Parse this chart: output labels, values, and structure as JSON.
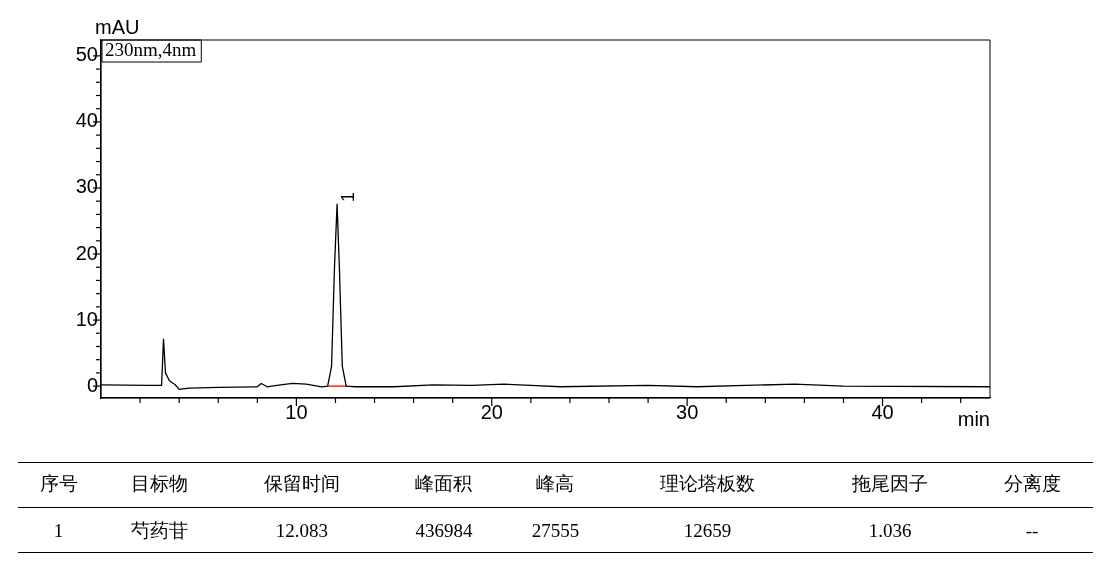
{
  "chart_data": [
    {
      "type": "line",
      "xlabel": "min",
      "ylabel": "mAU",
      "xlim": [
        0,
        45.5
      ],
      "ylim": [
        -1.8,
        52.4
      ],
      "xticks": [
        {
          "value": 2,
          "label": null
        },
        {
          "value": 4,
          "label": null
        },
        {
          "value": 6,
          "label": null
        },
        {
          "value": 8,
          "label": null
        },
        10,
        {
          "value": 12,
          "label": null
        },
        {
          "value": 14,
          "label": null
        },
        {
          "value": 16,
          "label": null
        },
        {
          "value": 18,
          "label": null
        },
        20,
        {
          "value": 22,
          "label": null
        },
        {
          "value": 24,
          "label": null
        },
        {
          "value": 26,
          "label": null
        },
        {
          "value": 28,
          "label": null
        },
        30,
        {
          "value": 32,
          "label": null
        },
        {
          "value": 34,
          "label": null
        },
        {
          "value": 36,
          "label": null
        },
        {
          "value": 38,
          "label": null
        },
        40,
        {
          "value": 42,
          "label": null
        },
        {
          "value": 44,
          "label": null
        }
      ],
      "yticks": [
        0,
        {
          "value": 2,
          "label": null
        },
        {
          "value": 4,
          "label": null
        },
        {
          "value": 6,
          "label": null
        },
        {
          "value": 8,
          "label": null
        },
        10,
        {
          "value": 12,
          "label": null
        },
        {
          "value": 14,
          "label": null
        },
        {
          "value": 16,
          "label": null
        },
        {
          "value": 18,
          "label": null
        },
        20,
        {
          "value": 22,
          "label": null
        },
        {
          "value": 24,
          "label": null
        },
        {
          "value": 26,
          "label": null
        },
        {
          "value": 28,
          "label": null
        },
        30,
        {
          "value": 32,
          "label": null
        },
        {
          "value": 34,
          "label": null
        },
        {
          "value": 36,
          "label": null
        },
        {
          "value": 38,
          "label": null
        },
        40,
        {
          "value": 42,
          "label": null
        },
        {
          "value": 44,
          "label": null
        },
        {
          "value": 46,
          "label": null
        },
        {
          "value": 48,
          "label": null
        },
        50
      ],
      "grid": false,
      "legend": false,
      "marker": "none",
      "line_style": "solid",
      "annotations": [
        "230nm,4nm",
        {
          "text": "1",
          "x": 12.083,
          "y": 27.555
        }
      ],
      "series": [
        {
          "color": "#000000",
          "x": [
            0,
            2.5,
            3.1,
            3.2,
            3.3,
            3.5,
            3.8,
            4.0,
            4.5,
            6,
            8.0,
            8.2,
            8.5,
            9.0,
            9.8,
            10.5,
            11.3,
            11.6,
            11.8,
            11.95,
            12.083,
            12.2,
            12.35,
            12.55,
            13,
            15,
            17,
            19,
            20.6,
            22,
            23.5,
            28,
            30.5,
            33,
            35.5,
            38,
            45.5
          ],
          "values": [
            0.2,
            0.1,
            0.1,
            7.1,
            2.0,
            0.8,
            0.2,
            -0.5,
            -0.3,
            -0.2,
            -0.1,
            0.4,
            -0.1,
            0.1,
            0.4,
            0.3,
            -0.1,
            0.0,
            3,
            18,
            27.555,
            18,
            3,
            0,
            -0.1,
            -0.1,
            0.2,
            0.1,
            0.3,
            0.1,
            -0.1,
            0.1,
            -0.1,
            0.1,
            0.3,
            0,
            -0.1
          ]
        },
        {
          "color": "#ff0000",
          "x": [
            11.6,
            12.6
          ],
          "values": [
            0,
            0
          ]
        }
      ]
    },
    {
      "type": "other",
      "categories": [
        "序号",
        "目标物",
        "保留时间",
        "峰面积",
        "峰高",
        "理论塔板数",
        "拖尾因子",
        "分离度"
      ],
      "annotations": [
        "1",
        "芍药苷",
        "12.083",
        "436984",
        "27555",
        "12659",
        "1.036",
        "--"
      ]
    }
  ]
}
